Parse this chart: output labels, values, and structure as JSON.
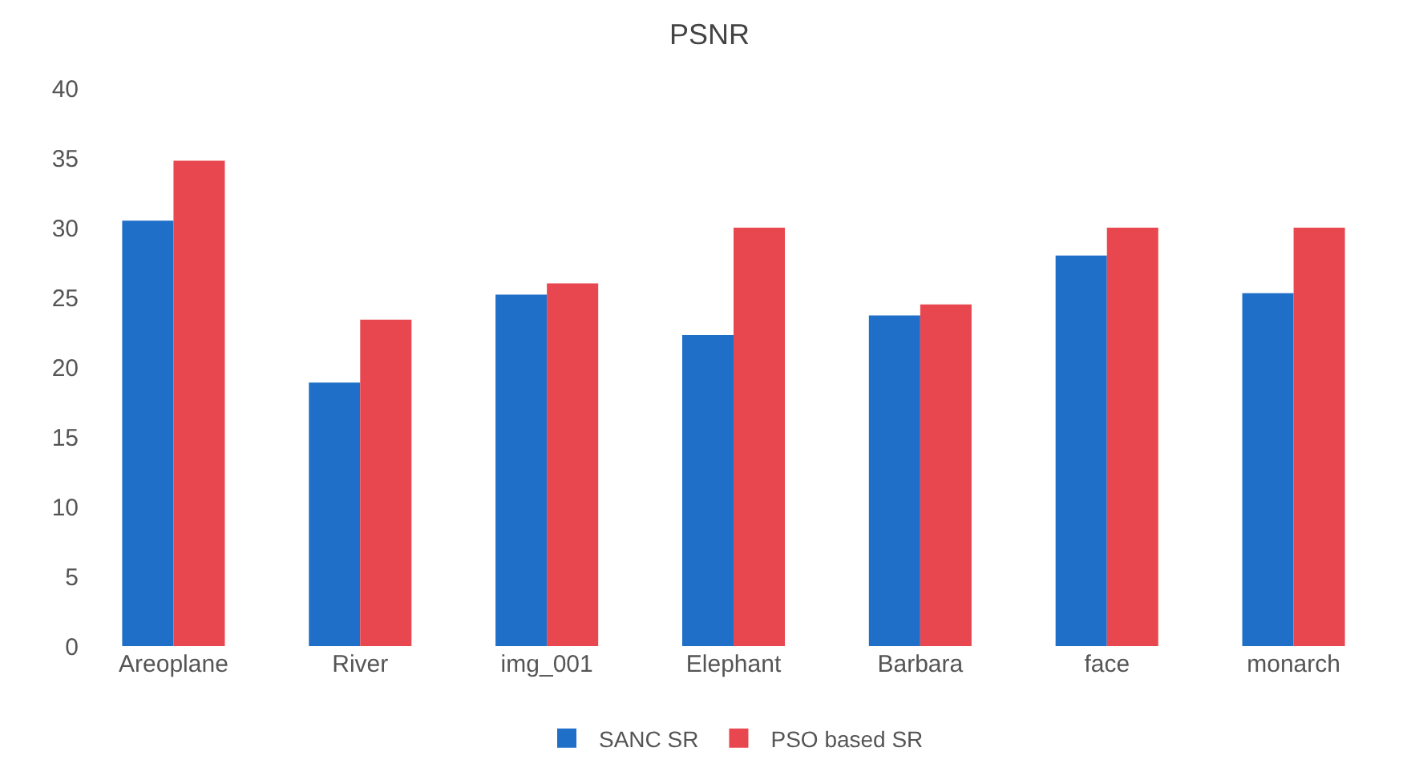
{
  "chart_data": {
    "type": "bar",
    "title": "PSNR",
    "categories": [
      "Areoplane",
      "River",
      "img_001",
      "Elephant",
      "Barbara",
      "face",
      "monarch"
    ],
    "series": [
      {
        "name": "SANC SR",
        "color": "#1f6fc8",
        "values": [
          30.5,
          18.9,
          25.2,
          22.3,
          23.7,
          28,
          25.3
        ]
      },
      {
        "name": "PSO based SR",
        "color": "#e8474f",
        "values": [
          34.8,
          23.4,
          26,
          30,
          24.5,
          30,
          30
        ]
      }
    ],
    "ylim": [
      0,
      40
    ],
    "yticks": [
      0,
      5,
      10,
      15,
      20,
      25,
      30,
      35,
      40
    ],
    "grid": false,
    "legend": "bottom"
  }
}
